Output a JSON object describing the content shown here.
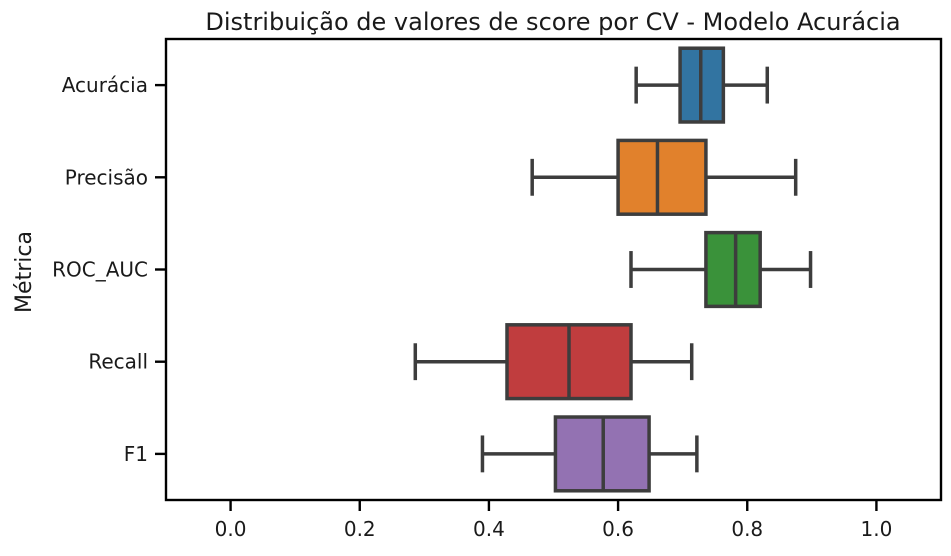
{
  "chart_data": {
    "type": "boxplot",
    "orientation": "horizontal",
    "title": "Distribuição de valores de score por CV - Modelo Acurácia",
    "xlabel": "",
    "ylabel": "Métrica",
    "xlim": [
      -0.1,
      1.1
    ],
    "xticks": [
      0.0,
      0.2,
      0.4,
      0.6,
      0.8,
      1.0
    ],
    "xtick_labels": [
      "0.0",
      "0.2",
      "0.4",
      "0.6",
      "0.8",
      "1.0"
    ],
    "grid": false,
    "categories": [
      "Acurácia",
      "Precisão",
      "ROC_AUC",
      "Recall",
      "F1"
    ],
    "boxes": [
      {
        "category": "Acurácia",
        "whisker_low": 0.628,
        "q1": 0.696,
        "median": 0.728,
        "q3": 0.763,
        "whisker_high": 0.831,
        "color": "#3274a1"
      },
      {
        "category": "Precisão",
        "whisker_low": 0.467,
        "q1": 0.6,
        "median": 0.661,
        "q3": 0.736,
        "whisker_high": 0.875,
        "color": "#e1812c"
      },
      {
        "category": "ROC_AUC",
        "whisker_low": 0.62,
        "q1": 0.736,
        "median": 0.782,
        "q3": 0.82,
        "whisker_high": 0.898,
        "color": "#3a923a"
      },
      {
        "category": "Recall",
        "whisker_low": 0.286,
        "q1": 0.428,
        "median": 0.524,
        "q3": 0.62,
        "whisker_high": 0.714,
        "color": "#c03d3e"
      },
      {
        "category": "F1",
        "whisker_low": 0.39,
        "q1": 0.503,
        "median": 0.577,
        "q3": 0.648,
        "whisker_high": 0.722,
        "color": "#9372b2"
      }
    ],
    "line_color": "#3d3d3d"
  }
}
